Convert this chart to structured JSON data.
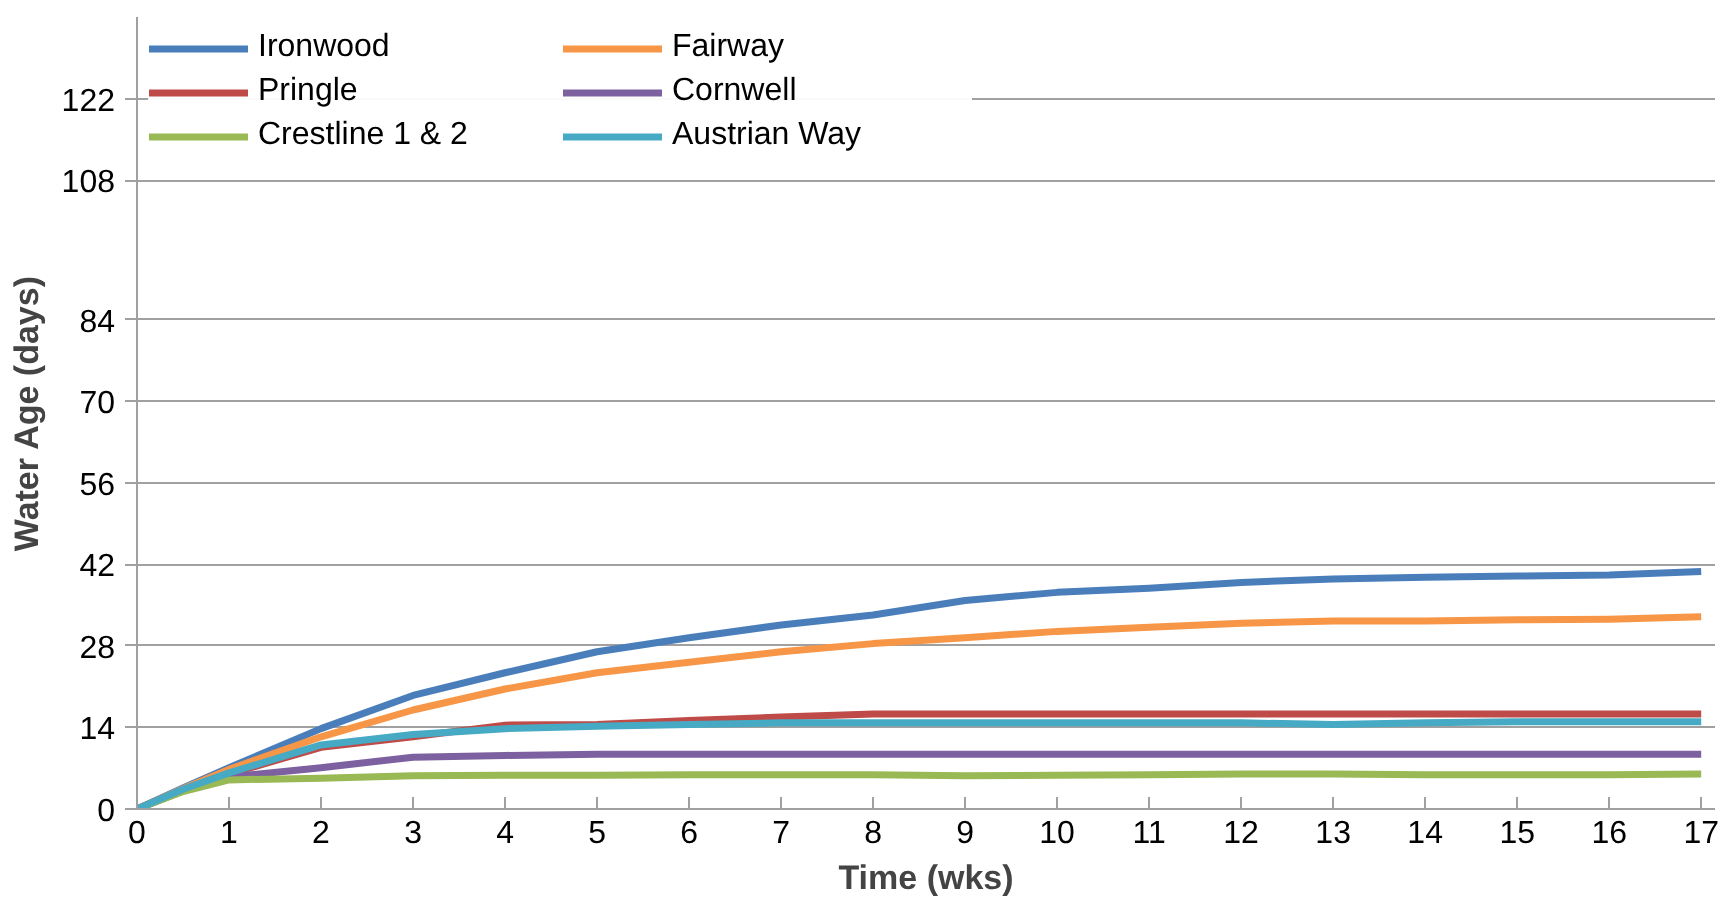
{
  "chart_data": {
    "type": "line",
    "xlabel": "Time (wks)",
    "ylabel": "Water Age (days)",
    "x": [
      0,
      0.5,
      1,
      2,
      3,
      4,
      5,
      6,
      7,
      8,
      9,
      10,
      11,
      12,
      13,
      14,
      15,
      16,
      17
    ],
    "series": [
      {
        "name": "Ironwood",
        "color": "#4a7ebb",
        "values": [
          0,
          3.6,
          7.1,
          13.8,
          19.5,
          23.4,
          27,
          29.4,
          31.6,
          33.3,
          35.8,
          37.2,
          37.9,
          38.9,
          39.5,
          39.8,
          40,
          40.2,
          40.8
        ]
      },
      {
        "name": "Fairway",
        "color": "#f79646",
        "values": [
          0,
          3.5,
          6.8,
          12.4,
          17,
          20.6,
          23.4,
          25.2,
          27,
          28.4,
          29.4,
          30.5,
          31.2,
          31.9,
          32.3,
          32.3,
          32.5,
          32.6,
          33
        ]
      },
      {
        "name": "Pringle",
        "color": "#be4b48",
        "values": [
          0,
          3.3,
          6,
          10.6,
          12.4,
          14.4,
          14.5,
          15.2,
          15.8,
          16.3,
          16.3,
          16.3,
          16.3,
          16.3,
          16.3,
          16.3,
          16.3,
          16.3,
          16.3
        ]
      },
      {
        "name": "Cornwell",
        "color": "#7d60a0",
        "values": [
          0,
          3.1,
          5.5,
          7.1,
          8.9,
          9.2,
          9.4,
          9.4,
          9.4,
          9.4,
          9.4,
          9.4,
          9.4,
          9.4,
          9.4,
          9.4,
          9.4,
          9.4,
          9.4
        ]
      },
      {
        "name": "Crestline 1 & 2",
        "color": "#98b954",
        "values": [
          0,
          3,
          5,
          5.3,
          5.7,
          5.8,
          5.8,
          5.9,
          5.9,
          5.9,
          5.7,
          5.8,
          5.9,
          6,
          6,
          5.9,
          5.9,
          5.9,
          6
        ]
      },
      {
        "name": "Austrian Way",
        "color": "#46aac5",
        "values": [
          0,
          3.4,
          6.2,
          11,
          12.8,
          13.8,
          14.2,
          14.5,
          14.8,
          14.8,
          14.8,
          14.8,
          14.8,
          14.8,
          14.5,
          14.8,
          15,
          15,
          15
        ]
      }
    ],
    "xlim": [
      0,
      17.15
    ],
    "ylim": [
      0,
      136
    ],
    "xticks": [
      0,
      1,
      2,
      3,
      4,
      5,
      6,
      7,
      8,
      9,
      10,
      11,
      12,
      13,
      14,
      15,
      16,
      17
    ],
    "yticks": [
      0,
      14,
      28,
      42,
      56,
      70,
      84,
      108,
      122
    ],
    "grid": "y",
    "legend": "top left",
    "marker": "none",
    "line_style": "solid"
  }
}
